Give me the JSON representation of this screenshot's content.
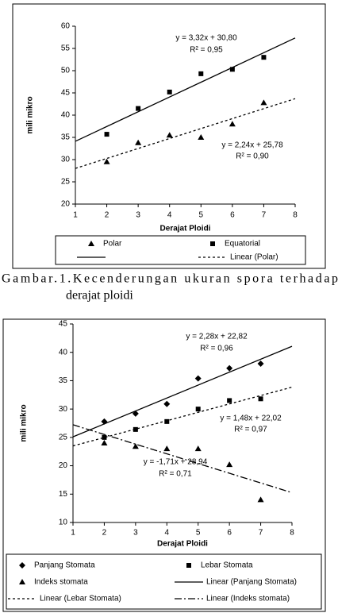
{
  "chart_data": [
    {
      "type": "scatter",
      "xlabel": "Derajat Ploidi",
      "ylabel": "mili mikro",
      "xlim": [
        1,
        8
      ],
      "ylim": [
        20,
        60
      ],
      "xticks": [
        1,
        2,
        3,
        4,
        5,
        6,
        7,
        8
      ],
      "yticks": [
        20,
        25,
        30,
        35,
        40,
        45,
        50,
        55,
        60
      ],
      "series": [
        {
          "name": "Polar",
          "kind": "points",
          "marker": "triangle",
          "color": "#000000",
          "x": [
            2,
            3,
            4,
            5,
            6,
            7
          ],
          "values": [
            29.5,
            33.8,
            35.5,
            35,
            38,
            42.8
          ]
        },
        {
          "name": "Equatorial",
          "kind": "points",
          "marker": "square",
          "color": "#000000",
          "x": [
            2,
            3,
            4,
            5,
            6,
            7
          ],
          "values": [
            35.7,
            41.5,
            45.2,
            49.3,
            50.3,
            53
          ]
        },
        {
          "kind": "trend",
          "dash": "solid",
          "color": "#000000",
          "x": [
            1,
            8
          ],
          "values": [
            34.12,
            57.36
          ]
        },
        {
          "name": "Linear (Polar)",
          "kind": "trend",
          "dash": "dashed",
          "color": "#000000",
          "x": [
            1,
            8
          ],
          "values": [
            28.02,
            43.7
          ]
        }
      ],
      "annotations": [
        "y = 3,32x + 30,80",
        "R² = 0,95",
        "y = 2,24x + 25,78",
        "R² = 0,90"
      ]
    },
    {
      "type": "scatter",
      "xlabel": "Derajat Ploidi",
      "ylabel": "mili mikro",
      "xlim": [
        1,
        8
      ],
      "ylim": [
        10,
        45
      ],
      "xticks": [
        1,
        2,
        3,
        4,
        5,
        6,
        7,
        8
      ],
      "yticks": [
        10,
        15,
        20,
        25,
        30,
        35,
        40,
        45
      ],
      "series": [
        {
          "name": "Panjang Stomata",
          "kind": "points",
          "marker": "diamond",
          "color": "#000000",
          "x": [
            2,
            3,
            4,
            5,
            6,
            7
          ],
          "values": [
            27.8,
            29.2,
            30.9,
            35.4,
            37.2,
            38
          ]
        },
        {
          "name": "Lebar Stomata",
          "kind": "points",
          "marker": "square",
          "color": "#000000",
          "x": [
            2,
            3,
            4,
            5,
            6,
            7
          ],
          "values": [
            25,
            26.4,
            27.8,
            30,
            31.5,
            31.8
          ]
        },
        {
          "name": "Indeks stomata",
          "kind": "points",
          "marker": "triangle",
          "color": "#000000",
          "x": [
            2,
            3,
            4,
            5,
            6,
            7
          ],
          "values": [
            24,
            23.4,
            23,
            23,
            20.2,
            14
          ]
        },
        {
          "name": "Linear (Panjang Stomata)",
          "kind": "trend",
          "dash": "solid",
          "color": "#000000",
          "x": [
            1,
            8
          ],
          "values": [
            25.1,
            41.06
          ]
        },
        {
          "name": "Linear (Lebar Stomata)",
          "kind": "trend",
          "dash": "dashed",
          "color": "#000000",
          "x": [
            1,
            8
          ],
          "values": [
            23.5,
            33.86
          ]
        },
        {
          "name": "Linear (Indeks stomata)",
          "kind": "trend",
          "dash": "dashdot",
          "color": "#000000",
          "x": [
            1,
            8
          ],
          "values": [
            27.23,
            15.26
          ]
        }
      ],
      "annotations": [
        "y = 2,28x + 22,82",
        "R² = 0,96",
        "y = 1,48x + 22,02",
        "R² = 0,97",
        "y = -1,71x + 28,94",
        "R² = 0,71"
      ]
    }
  ],
  "caption": [
    "Gambar.1.Kecenderungan ukuran spora terhadap",
    "derajat ploidi"
  ]
}
